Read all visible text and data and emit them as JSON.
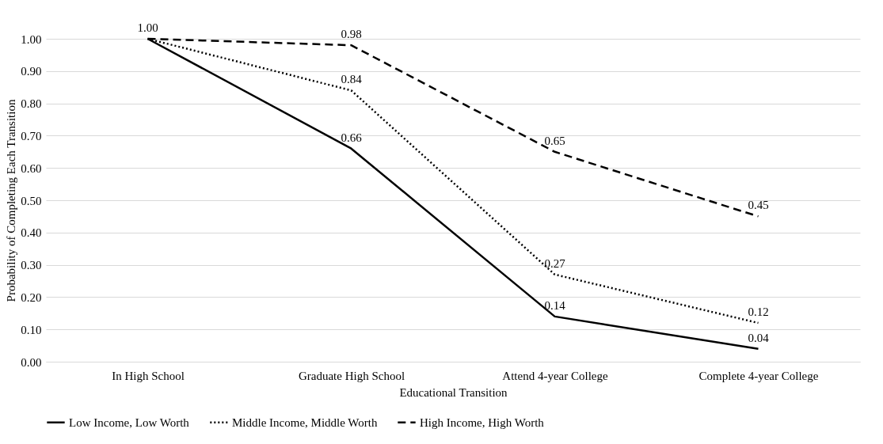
{
  "chart_data": {
    "type": "line",
    "xlabel": "Educational Transition",
    "ylabel": "Probability of Completing Each Transition",
    "categories": [
      "In High School",
      "Graduate High School",
      "Attend 4-year College",
      "Complete 4-year College"
    ],
    "series": [
      {
        "name": "Low Income, Low Worth",
        "color": "#000000",
        "line_style": "solid",
        "values": [
          1.0,
          0.66,
          0.14,
          0.04
        ],
        "value_labels": [
          null,
          "0.66",
          "0.14",
          "0.04"
        ]
      },
      {
        "name": "Middle Income, Middle Worth",
        "color": "#000000",
        "line_style": "dotted",
        "values": [
          1.0,
          0.84,
          0.27,
          0.12
        ],
        "value_labels": [
          null,
          "0.84",
          "0.27",
          "0.12"
        ]
      },
      {
        "name": "High Income, High Worth",
        "color": "#000000",
        "line_style": "dashed",
        "values": [
          1.0,
          0.98,
          0.65,
          0.45
        ],
        "value_labels": [
          "1.00",
          "0.98",
          "0.65",
          "0.45"
        ]
      }
    ],
    "ylim": [
      0,
      1
    ],
    "yticks": [
      {
        "value": 0,
        "label": "0.00"
      },
      {
        "value": 0.1,
        "label": "0.10"
      },
      {
        "value": 0.2,
        "label": "0.20"
      },
      {
        "value": 0.3,
        "label": "0.30"
      },
      {
        "value": 0.4,
        "label": "0.40"
      },
      {
        "value": 0.5,
        "label": "0.50"
      },
      {
        "value": 0.6,
        "label": "0.60"
      },
      {
        "value": 0.7,
        "label": "0.70"
      },
      {
        "value": 0.8,
        "label": "0.80"
      },
      {
        "value": 0.9,
        "label": "0.90"
      },
      {
        "value": 1,
        "label": "1.00"
      }
    ],
    "grid": "y",
    "legend": "bottom"
  }
}
